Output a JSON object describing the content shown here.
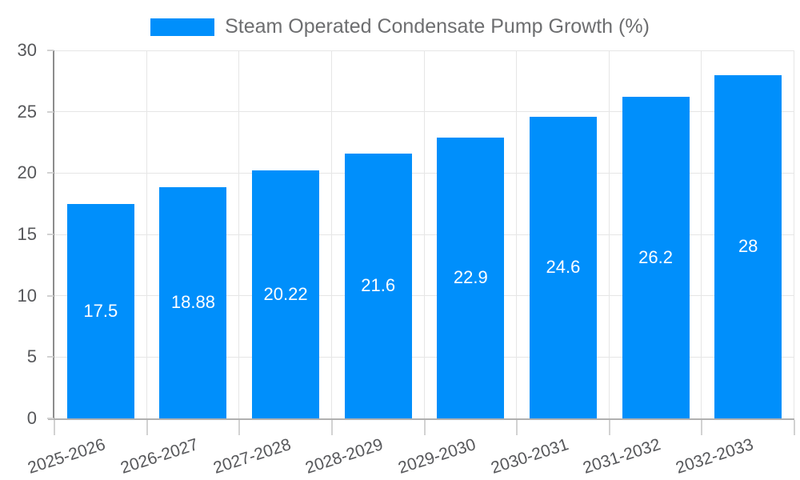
{
  "chart_data": {
    "type": "bar",
    "title": "",
    "xlabel": "",
    "ylabel": "",
    "legend": {
      "label": "Steam Operated Condensate Pump Growth (%)",
      "position": "top-center"
    },
    "categories": [
      "2025-2026",
      "2026-2027",
      "2027-2028",
      "2028-2029",
      "2029-2030",
      "2030-2031",
      "2031-2032",
      "2032-2033"
    ],
    "series": [
      {
        "name": "Steam Operated Condensate Pump Growth (%)",
        "values": [
          17.5,
          18.88,
          20.22,
          21.6,
          22.9,
          24.6,
          26.2,
          28
        ],
        "value_labels": [
          "17.5",
          "18.88",
          "20.22",
          "21.6",
          "22.9",
          "24.6",
          "26.2",
          "28"
        ]
      }
    ],
    "ylim": [
      0,
      30
    ],
    "yticks": [
      0,
      5,
      10,
      15,
      20,
      25,
      30
    ],
    "grid": {
      "horizontal": true,
      "vertical": true
    },
    "x_tick_rotation_deg": -18,
    "bar_labels_inside": true
  },
  "colors": {
    "background": "#ffffff",
    "bar": "#008ffb",
    "bar_label": "#ffffff",
    "grid_line": "#e6e6e6",
    "axis_line_left": "#8c8c8c",
    "axis_line_bottom": "#b0b0b0",
    "tick_mark": "#d2d2d2",
    "tick_label": "#56575a",
    "legend_text": "#6d6e70"
  }
}
